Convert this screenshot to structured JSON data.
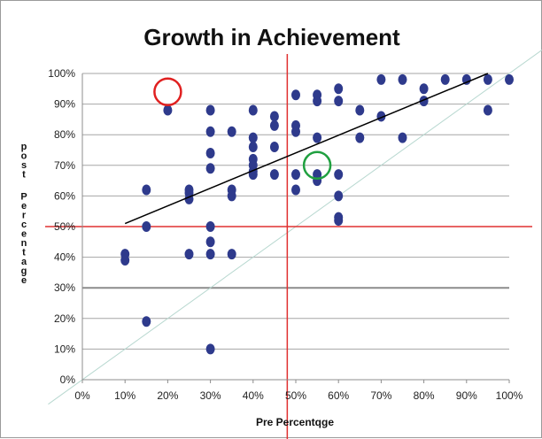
{
  "chart_data": {
    "type": "scatter",
    "title": "Growth in Achievement",
    "xlabel": "Pre Percentqge",
    "ylabel": "post Percentage",
    "xlim": [
      0,
      100
    ],
    "ylim": [
      0,
      100
    ],
    "x_ticks": [
      "0%",
      "10%",
      "20%",
      "30%",
      "40%",
      "50%",
      "60%",
      "70%",
      "80%",
      "90%",
      "100%"
    ],
    "y_ticks": [
      "0%",
      "10%",
      "20%",
      "30%",
      "40%",
      "50%",
      "60%",
      "70%",
      "80%",
      "90%",
      "100%"
    ],
    "grid": "horizontal",
    "legend": "none",
    "point_color": "#2e3a8c",
    "series": [
      {
        "points": [
          [
            10,
            41
          ],
          [
            10,
            39
          ],
          [
            15,
            62
          ],
          [
            15,
            50
          ],
          [
            15,
            19
          ],
          [
            20,
            88
          ],
          [
            25,
            62
          ],
          [
            25,
            61
          ],
          [
            25,
            59
          ],
          [
            25,
            41
          ],
          [
            30,
            88
          ],
          [
            30,
            81
          ],
          [
            30,
            74
          ],
          [
            30,
            69
          ],
          [
            30,
            50
          ],
          [
            30,
            45
          ],
          [
            30,
            41
          ],
          [
            30,
            10
          ],
          [
            35,
            81
          ],
          [
            35,
            62
          ],
          [
            35,
            60
          ],
          [
            35,
            41
          ],
          [
            40,
            88
          ],
          [
            40,
            79
          ],
          [
            40,
            76
          ],
          [
            40,
            72
          ],
          [
            40,
            70
          ],
          [
            40,
            68
          ],
          [
            40,
            67
          ],
          [
            45,
            86
          ],
          [
            45,
            83
          ],
          [
            45,
            76
          ],
          [
            45,
            67
          ],
          [
            50,
            93
          ],
          [
            50,
            83
          ],
          [
            50,
            81
          ],
          [
            50,
            67
          ],
          [
            50,
            62
          ],
          [
            55,
            93
          ],
          [
            55,
            91
          ],
          [
            55,
            79
          ],
          [
            55,
            67
          ],
          [
            55,
            65
          ],
          [
            60,
            95
          ],
          [
            60,
            91
          ],
          [
            60,
            67
          ],
          [
            60,
            60
          ],
          [
            60,
            53
          ],
          [
            60,
            52
          ],
          [
            65,
            88
          ],
          [
            65,
            79
          ],
          [
            70,
            98
          ],
          [
            70,
            86
          ],
          [
            75,
            98
          ],
          [
            75,
            79
          ],
          [
            80,
            95
          ],
          [
            80,
            91
          ],
          [
            85,
            98
          ],
          [
            90,
            98
          ],
          [
            95,
            98
          ],
          [
            95,
            88
          ],
          [
            100,
            98
          ]
        ]
      }
    ],
    "trendline": {
      "x": [
        10,
        95
      ],
      "y": [
        51,
        100
      ],
      "color": "#000000"
    },
    "diagonal_reference": {
      "x": [
        0,
        100
      ],
      "y": [
        0,
        100
      ],
      "color": "#b8d8d0"
    },
    "reference_lines": {
      "vertical_x": 48,
      "horizontal_y": 50,
      "color": "#e03030"
    },
    "annotations": [
      {
        "shape": "circle",
        "x": 20,
        "y": 94,
        "color": "#e02020"
      },
      {
        "shape": "circle",
        "x": 55,
        "y": 70,
        "color": "#20a040"
      }
    ]
  }
}
